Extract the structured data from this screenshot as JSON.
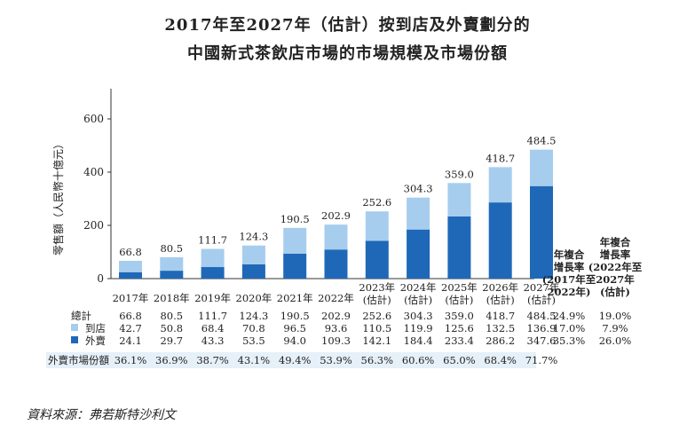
{
  "title_line1": "2017年至2027年（估計）按到店及外賣劃分的",
  "title_line2": "中國新式茶飲店市場的市場規模及市場份額",
  "source": "資料來源：弗若斯特沙利文",
  "colors": {
    "instore": "#a6cdee",
    "delivery": "#1f68b8",
    "share_bg": "#e6f0f9"
  },
  "chart_data": {
    "type": "bar",
    "stacked": true,
    "ylabel": "零售額（人民幣十億元）",
    "ylim": [
      0,
      700
    ],
    "yticks": [
      0,
      200,
      400,
      600
    ],
    "categories": [
      {
        "line1": "2017年",
        "line2": ""
      },
      {
        "line1": "2018年",
        "line2": ""
      },
      {
        "line1": "2019年",
        "line2": ""
      },
      {
        "line1": "2020年",
        "line2": ""
      },
      {
        "line1": "2021年",
        "line2": ""
      },
      {
        "line1": "2022年",
        "line2": ""
      },
      {
        "line1": "2023年",
        "line2": "(估計)"
      },
      {
        "line1": "2024年",
        "line2": "(估計)"
      },
      {
        "line1": "2025年",
        "line2": "(估計)"
      },
      {
        "line1": "2026年",
        "line2": "(估計)"
      },
      {
        "line1": "2027年",
        "line2": "(估計)"
      }
    ],
    "totals_label": "總計",
    "totals": [
      66.8,
      80.5,
      111.7,
      124.3,
      190.5,
      202.9,
      252.6,
      304.3,
      359.0,
      418.7,
      484.5
    ],
    "series": [
      {
        "name": "到店",
        "values": [
          42.7,
          50.8,
          68.4,
          70.8,
          96.5,
          93.6,
          110.5,
          119.9,
          125.6,
          132.5,
          136.9
        ]
      },
      {
        "name": "外賣",
        "values": [
          24.1,
          29.7,
          43.3,
          53.5,
          94.0,
          109.3,
          142.1,
          184.4,
          233.4,
          286.2,
          347.6
        ]
      }
    ],
    "share_label": "外賣市場份額",
    "share": [
      "36.1%",
      "36.9%",
      "38.7%",
      "43.1%",
      "49.4%",
      "53.9%",
      "56.3%",
      "60.6%",
      "65.0%",
      "68.4%",
      "71.7%"
    ],
    "cagr": [
      {
        "header": [
          "年複合",
          "增長率",
          "(2017年至",
          "2022年)"
        ],
        "values": [
          "24.9%",
          "17.0%",
          "35.3%"
        ]
      },
      {
        "header": [
          "年複合",
          "增長率",
          "(2022年至",
          "2027年",
          "(估計)"
        ],
        "values": [
          "19.0%",
          "7.9%",
          "26.0%"
        ]
      }
    ]
  }
}
